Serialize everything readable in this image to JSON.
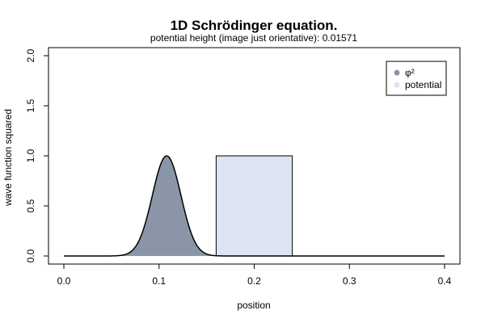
{
  "chart_data": {
    "type": "area",
    "title": "1D Schrödinger equation.",
    "subtitle": "potential height (image just orientative): 0.01571",
    "xlabel": "position",
    "ylabel": "wave function squared",
    "xlim": [
      0.0,
      0.4
    ],
    "ylim": [
      0.0,
      2.0
    ],
    "x_ticks": [
      "0.0",
      "0.1",
      "0.2",
      "0.3",
      "0.4"
    ],
    "y_ticks": [
      "0.0",
      "0.5",
      "1.0",
      "1.5",
      "2.0"
    ],
    "grid": false,
    "legend_position": "top-right",
    "series": [
      {
        "name": "φ²",
        "color": "#8a96a8",
        "peak_x": 0.108,
        "peak_y": 1.0,
        "sigma": 0.015,
        "x_start": 0.0,
        "x_end": 0.4
      },
      {
        "name": "potential",
        "color": "#dce4f4",
        "x_from": 0.16,
        "x_to": 0.24,
        "height": 1.0
      }
    ]
  }
}
